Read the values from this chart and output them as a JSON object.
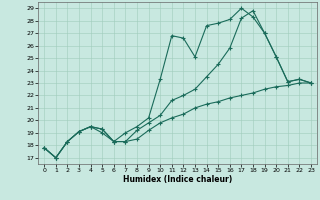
{
  "xlabel": "Humidex (Indice chaleur)",
  "bg_color": "#c8e8e0",
  "line_color": "#1a6b5a",
  "grid_color": "#a0ccbc",
  "xlim": [
    -0.5,
    23.5
  ],
  "ylim": [
    16.5,
    29.5
  ],
  "xticks": [
    0,
    1,
    2,
    3,
    4,
    5,
    6,
    7,
    8,
    9,
    10,
    11,
    12,
    13,
    14,
    15,
    16,
    17,
    18,
    19,
    20,
    21,
    22,
    23
  ],
  "yticks": [
    17,
    18,
    19,
    20,
    21,
    22,
    23,
    24,
    25,
    26,
    27,
    28,
    29
  ],
  "series": [
    {
      "x": [
        0,
        1,
        2,
        3,
        4,
        5,
        6,
        7,
        8,
        9,
        10,
        11,
        12,
        13,
        14,
        15,
        16,
        17,
        18,
        19,
        20,
        21,
        22,
        23
      ],
      "y": [
        17.8,
        17.0,
        18.3,
        19.1,
        19.5,
        19.3,
        18.3,
        19.0,
        19.5,
        20.2,
        23.3,
        26.8,
        26.6,
        25.1,
        27.6,
        27.8,
        28.1,
        29.0,
        28.3,
        27.0,
        25.1,
        23.1,
        23.3,
        23.0
      ]
    },
    {
      "x": [
        0,
        1,
        2,
        3,
        4,
        5,
        6,
        7,
        8,
        9,
        10,
        11,
        12,
        13,
        14,
        15,
        16,
        17,
        18,
        19,
        20,
        21,
        22,
        23
      ],
      "y": [
        17.8,
        17.0,
        18.3,
        19.1,
        19.5,
        19.0,
        18.3,
        18.3,
        19.2,
        19.8,
        20.4,
        21.6,
        22.0,
        22.5,
        23.5,
        24.5,
        25.8,
        28.2,
        28.8,
        27.0,
        25.1,
        23.1,
        23.3,
        23.0
      ]
    },
    {
      "x": [
        0,
        1,
        2,
        3,
        4,
        5,
        6,
        7,
        8,
        9,
        10,
        11,
        12,
        13,
        14,
        15,
        16,
        17,
        18,
        19,
        20,
        21,
        22,
        23
      ],
      "y": [
        17.8,
        17.0,
        18.3,
        19.1,
        19.5,
        19.3,
        18.3,
        18.3,
        18.5,
        19.2,
        19.8,
        20.2,
        20.5,
        21.0,
        21.3,
        21.5,
        21.8,
        22.0,
        22.2,
        22.5,
        22.7,
        22.8,
        23.0,
        23.0
      ]
    }
  ]
}
